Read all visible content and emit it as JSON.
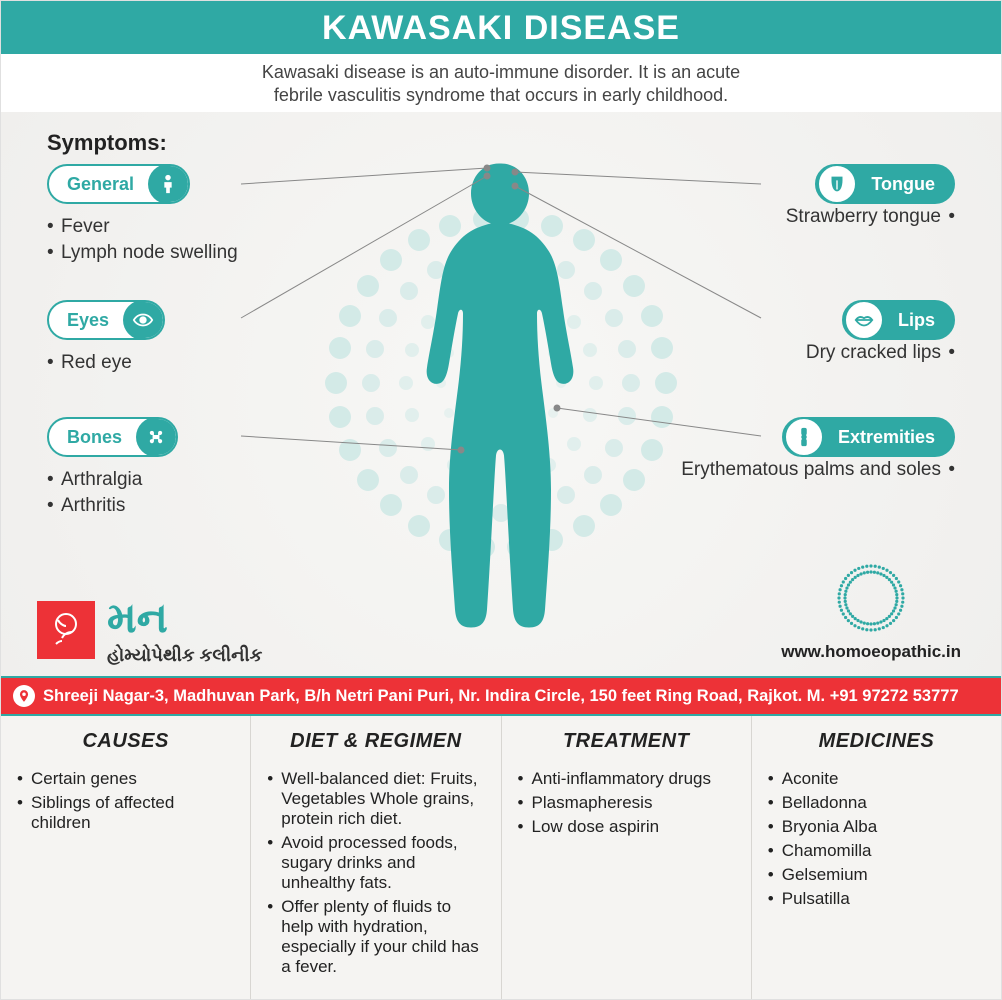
{
  "colors": {
    "primary": "#2fa9a4",
    "accent": "#ed3237",
    "text": "#333333",
    "pill_bg_light": "#ffffff",
    "dot": "#bde3e0",
    "page_bg": "#f5f4f2"
  },
  "header": {
    "title": "KAWASAKI DISEASE",
    "subtitle_l1": "Kawasaki disease is an auto-immune disorder. It is an acute",
    "subtitle_l2": "febrile vasculitis syndrome that occurs in early childhood."
  },
  "symptoms_label": "Symptoms:",
  "symptoms_left": [
    {
      "title": "General",
      "icon": "person",
      "items": [
        "Fever",
        "Lymph node swelling"
      ]
    },
    {
      "title": "Eyes",
      "icon": "eye",
      "items": [
        "Red eye"
      ]
    },
    {
      "title": "Bones",
      "icon": "bone",
      "items": [
        "Arthralgia",
        "Arthritis"
      ]
    }
  ],
  "symptoms_right": [
    {
      "title": "Tongue",
      "icon": "tongue",
      "items": [
        "Strawberry tongue"
      ]
    },
    {
      "title": "Lips",
      "icon": "lips",
      "items": [
        "Dry cracked lips"
      ]
    },
    {
      "title": "Extremities",
      "icon": "joint",
      "items": [
        "Erythematous palms and soles"
      ]
    }
  ],
  "clinic": {
    "logo_text": "મન",
    "logo_sub": "હોમ્યોપેથીક કલીનીક",
    "url": "www.homoeopathic.in",
    "address": "Shreeji Nagar-3, Madhuvan Park, B/h Netri Pani Puri, Nr. Indira Circle, 150 feet Ring Road, Rajkot. M. +91 97272 53777"
  },
  "lower": [
    {
      "title": "CAUSES",
      "items": [
        "Certain genes",
        "Siblings of affected children"
      ]
    },
    {
      "title": "DIET & REGIMEN",
      "items": [
        "Well-balanced diet: Fruits, Vegetables Whole grains, protein rich diet.",
        "Avoid processed foods, sugary drinks and unhealthy fats.",
        "Offer plenty of fluids to help with hydration, especially if your child has  a  fever."
      ]
    },
    {
      "title": "TREATMENT",
      "items": [
        "Anti-inflammatory drugs",
        "Plasmapheresis",
        "Low dose aspirin"
      ]
    },
    {
      "title": "MEDICINES",
      "items": [
        "Aconite",
        "Belladonna",
        "Bryonia Alba",
        "Chamomilla",
        "Gelsemium",
        "Pulsatilla"
      ]
    }
  ]
}
